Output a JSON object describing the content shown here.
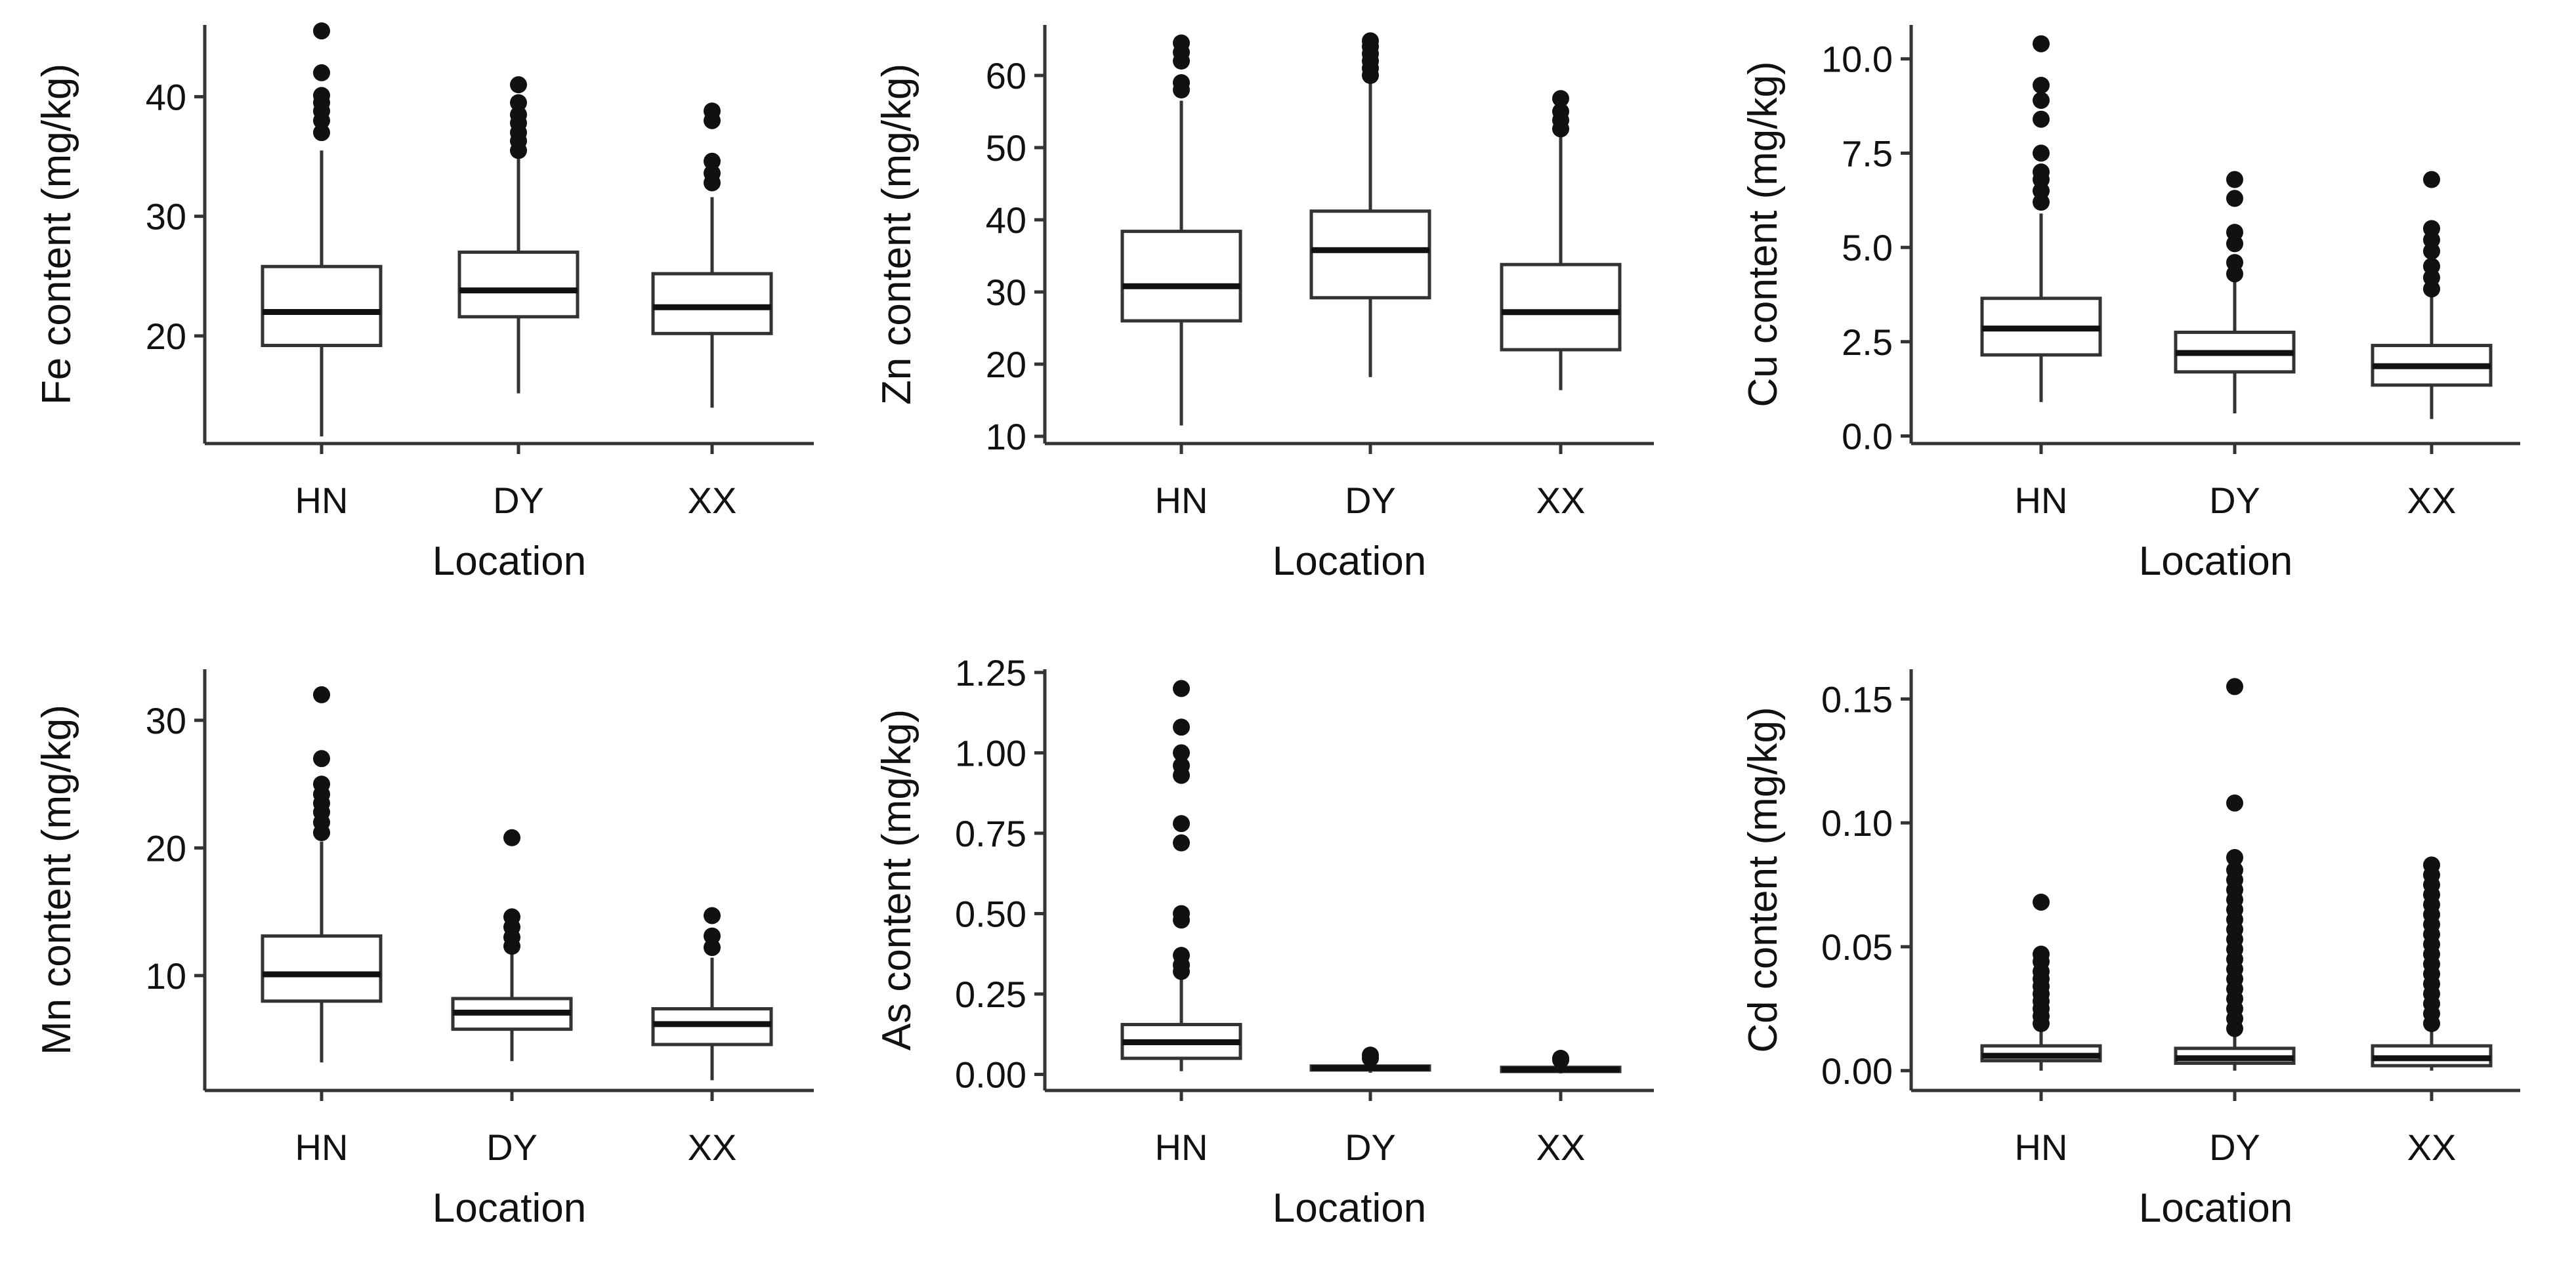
{
  "chart_data": [
    {
      "type": "boxplot",
      "xlabel": "Location",
      "ylabel": "Fe content (mg/kg)",
      "categories": [
        "HN",
        "DY",
        "XX"
      ],
      "ylim": [
        11,
        46
      ],
      "yticks": [
        20,
        30,
        40
      ],
      "tick_labels": [
        "20",
        "30",
        "40"
      ],
      "boxes": [
        {
          "min": 11.6,
          "q1": 19.2,
          "median": 22.0,
          "q3": 25.8,
          "max": 35.5,
          "outliers": [
            37,
            38,
            38.8,
            39.5,
            40.1,
            42.0,
            45.5
          ]
        },
        {
          "min": 15.2,
          "q1": 21.6,
          "median": 23.8,
          "q3": 27.0,
          "max": 34.8,
          "outliers": [
            35.5,
            36.3,
            37.0,
            37.8,
            38.5,
            39.5,
            41.0
          ]
        },
        {
          "min": 14.0,
          "q1": 20.2,
          "median": 22.4,
          "q3": 25.2,
          "max": 31.6,
          "outliers": [
            32.8,
            33.6,
            34.6,
            38.0,
            38.8
          ]
        }
      ]
    },
    {
      "type": "boxplot",
      "xlabel": "Location",
      "ylabel": "Zn content (mg/kg)",
      "categories": [
        "HN",
        "DY",
        "XX"
      ],
      "ylim": [
        9,
        67
      ],
      "yticks": [
        10,
        20,
        30,
        40,
        50,
        60
      ],
      "tick_labels": [
        "10",
        "20",
        "30",
        "40",
        "50",
        "60"
      ],
      "boxes": [
        {
          "min": 11.5,
          "q1": 26.0,
          "median": 30.8,
          "q3": 38.4,
          "max": 56.5,
          "outliers": [
            58.0,
            59.0,
            62.0,
            63.2,
            64.5
          ]
        },
        {
          "min": 18.2,
          "q1": 29.2,
          "median": 35.8,
          "q3": 41.2,
          "max": 59.0,
          "outliers": [
            60.0,
            61.0,
            62.0,
            63.0,
            64.0,
            64.8
          ]
        },
        {
          "min": 16.4,
          "q1": 22.0,
          "median": 27.2,
          "q3": 33.8,
          "max": 51.5,
          "outliers": [
            52.6,
            53.8,
            55.0,
            56.8
          ]
        }
      ]
    },
    {
      "type": "boxplot",
      "xlabel": "Location",
      "ylabel": "Cu content (mg/kg)",
      "categories": [
        "HN",
        "DY",
        "XX"
      ],
      "ylim": [
        -0.2,
        10.9
      ],
      "yticks": [
        0,
        2.5,
        5,
        7.5,
        10
      ],
      "tick_labels": [
        "0.0",
        "2.5",
        "5.0",
        "7.5",
        "10.0"
      ],
      "boxes": [
        {
          "min": 0.9,
          "q1": 2.15,
          "median": 2.85,
          "q3": 3.65,
          "max": 5.9,
          "outliers": [
            6.2,
            6.5,
            6.8,
            7.0,
            7.5,
            8.4,
            8.9,
            9.3,
            10.4
          ]
        },
        {
          "min": 0.6,
          "q1": 1.7,
          "median": 2.2,
          "q3": 2.75,
          "max": 4.1,
          "outliers": [
            4.3,
            4.6,
            5.1,
            5.4,
            6.3,
            6.8
          ]
        },
        {
          "min": 0.45,
          "q1": 1.35,
          "median": 1.85,
          "q3": 2.4,
          "max": 3.7,
          "outliers": [
            3.9,
            4.2,
            4.5,
            4.9,
            5.2,
            5.5,
            6.8
          ]
        }
      ]
    },
    {
      "type": "boxplot",
      "xlabel": "Location",
      "ylabel": "Mn content (mg/kg)",
      "categories": [
        "HN",
        "DY",
        "XX"
      ],
      "ylim": [
        1,
        34
      ],
      "yticks": [
        10,
        20,
        30
      ],
      "tick_labels": [
        "10",
        "20",
        "30"
      ],
      "boxes": [
        {
          "min": 3.2,
          "q1": 8.0,
          "median": 10.1,
          "q3": 13.1,
          "max": 20.5,
          "outliers": [
            21.2,
            22.0,
            22.8,
            23.5,
            24.2,
            25.0,
            27.0,
            32.0
          ]
        },
        {
          "min": 3.3,
          "q1": 5.8,
          "median": 7.1,
          "q3": 8.2,
          "max": 11.8,
          "outliers": [
            12.3,
            13.0,
            13.8,
            14.6,
            20.8
          ]
        },
        {
          "min": 1.8,
          "q1": 4.6,
          "median": 6.2,
          "q3": 7.4,
          "max": 11.4,
          "outliers": [
            12.2,
            13.1,
            14.7
          ]
        }
      ]
    },
    {
      "type": "boxplot",
      "xlabel": "Location",
      "ylabel": "As content (mg/kg)",
      "categories": [
        "HN",
        "DY",
        "XX"
      ],
      "ylim": [
        -0.05,
        1.26
      ],
      "yticks": [
        0,
        0.25,
        0.5,
        0.75,
        1,
        1.25
      ],
      "tick_labels": [
        "0.00",
        "0.25",
        "0.50",
        "0.75",
        "1.00",
        "1.25"
      ],
      "boxes": [
        {
          "min": 0.01,
          "q1": 0.05,
          "median": 0.1,
          "q3": 0.155,
          "max": 0.3,
          "outliers": [
            0.32,
            0.34,
            0.37,
            0.48,
            0.5,
            0.72,
            0.78,
            0.93,
            0.96,
            1.0,
            1.08,
            1.2
          ]
        },
        {
          "min": 0.005,
          "q1": 0.014,
          "median": 0.02,
          "q3": 0.026,
          "max": 0.04,
          "outliers": [
            0.05,
            0.06
          ]
        },
        {
          "min": 0.003,
          "q1": 0.009,
          "median": 0.015,
          "q3": 0.022,
          "max": 0.035,
          "outliers": [
            0.045,
            0.05
          ]
        }
      ]
    },
    {
      "type": "boxplot",
      "xlabel": "Location",
      "ylabel": "Cd content (mg/kg)",
      "categories": [
        "HN",
        "DY",
        "XX"
      ],
      "ylim": [
        -0.008,
        0.162
      ],
      "yticks": [
        0,
        0.05,
        0.1,
        0.15
      ],
      "tick_labels": [
        "0.00",
        "0.05",
        "0.10",
        "0.15"
      ],
      "boxes": [
        {
          "min": 0.0,
          "q1": 0.004,
          "median": 0.006,
          "q3": 0.01,
          "max": 0.017,
          "outliers": [
            0.019,
            0.022,
            0.025,
            0.028,
            0.031,
            0.034,
            0.037,
            0.04,
            0.044,
            0.047,
            0.068
          ]
        },
        {
          "min": 0.0,
          "q1": 0.003,
          "median": 0.005,
          "q3": 0.009,
          "max": 0.015,
          "outliers": [
            0.017,
            0.021,
            0.025,
            0.029,
            0.033,
            0.037,
            0.041,
            0.045,
            0.049,
            0.053,
            0.057,
            0.061,
            0.065,
            0.069,
            0.073,
            0.077,
            0.081,
            0.086,
            0.108,
            0.155
          ]
        },
        {
          "min": 0.0,
          "q1": 0.002,
          "median": 0.005,
          "q3": 0.01,
          "max": 0.017,
          "outliers": [
            0.019,
            0.023,
            0.027,
            0.031,
            0.035,
            0.039,
            0.043,
            0.047,
            0.051,
            0.055,
            0.059,
            0.063,
            0.067,
            0.071,
            0.075,
            0.079,
            0.083
          ]
        }
      ]
    }
  ]
}
